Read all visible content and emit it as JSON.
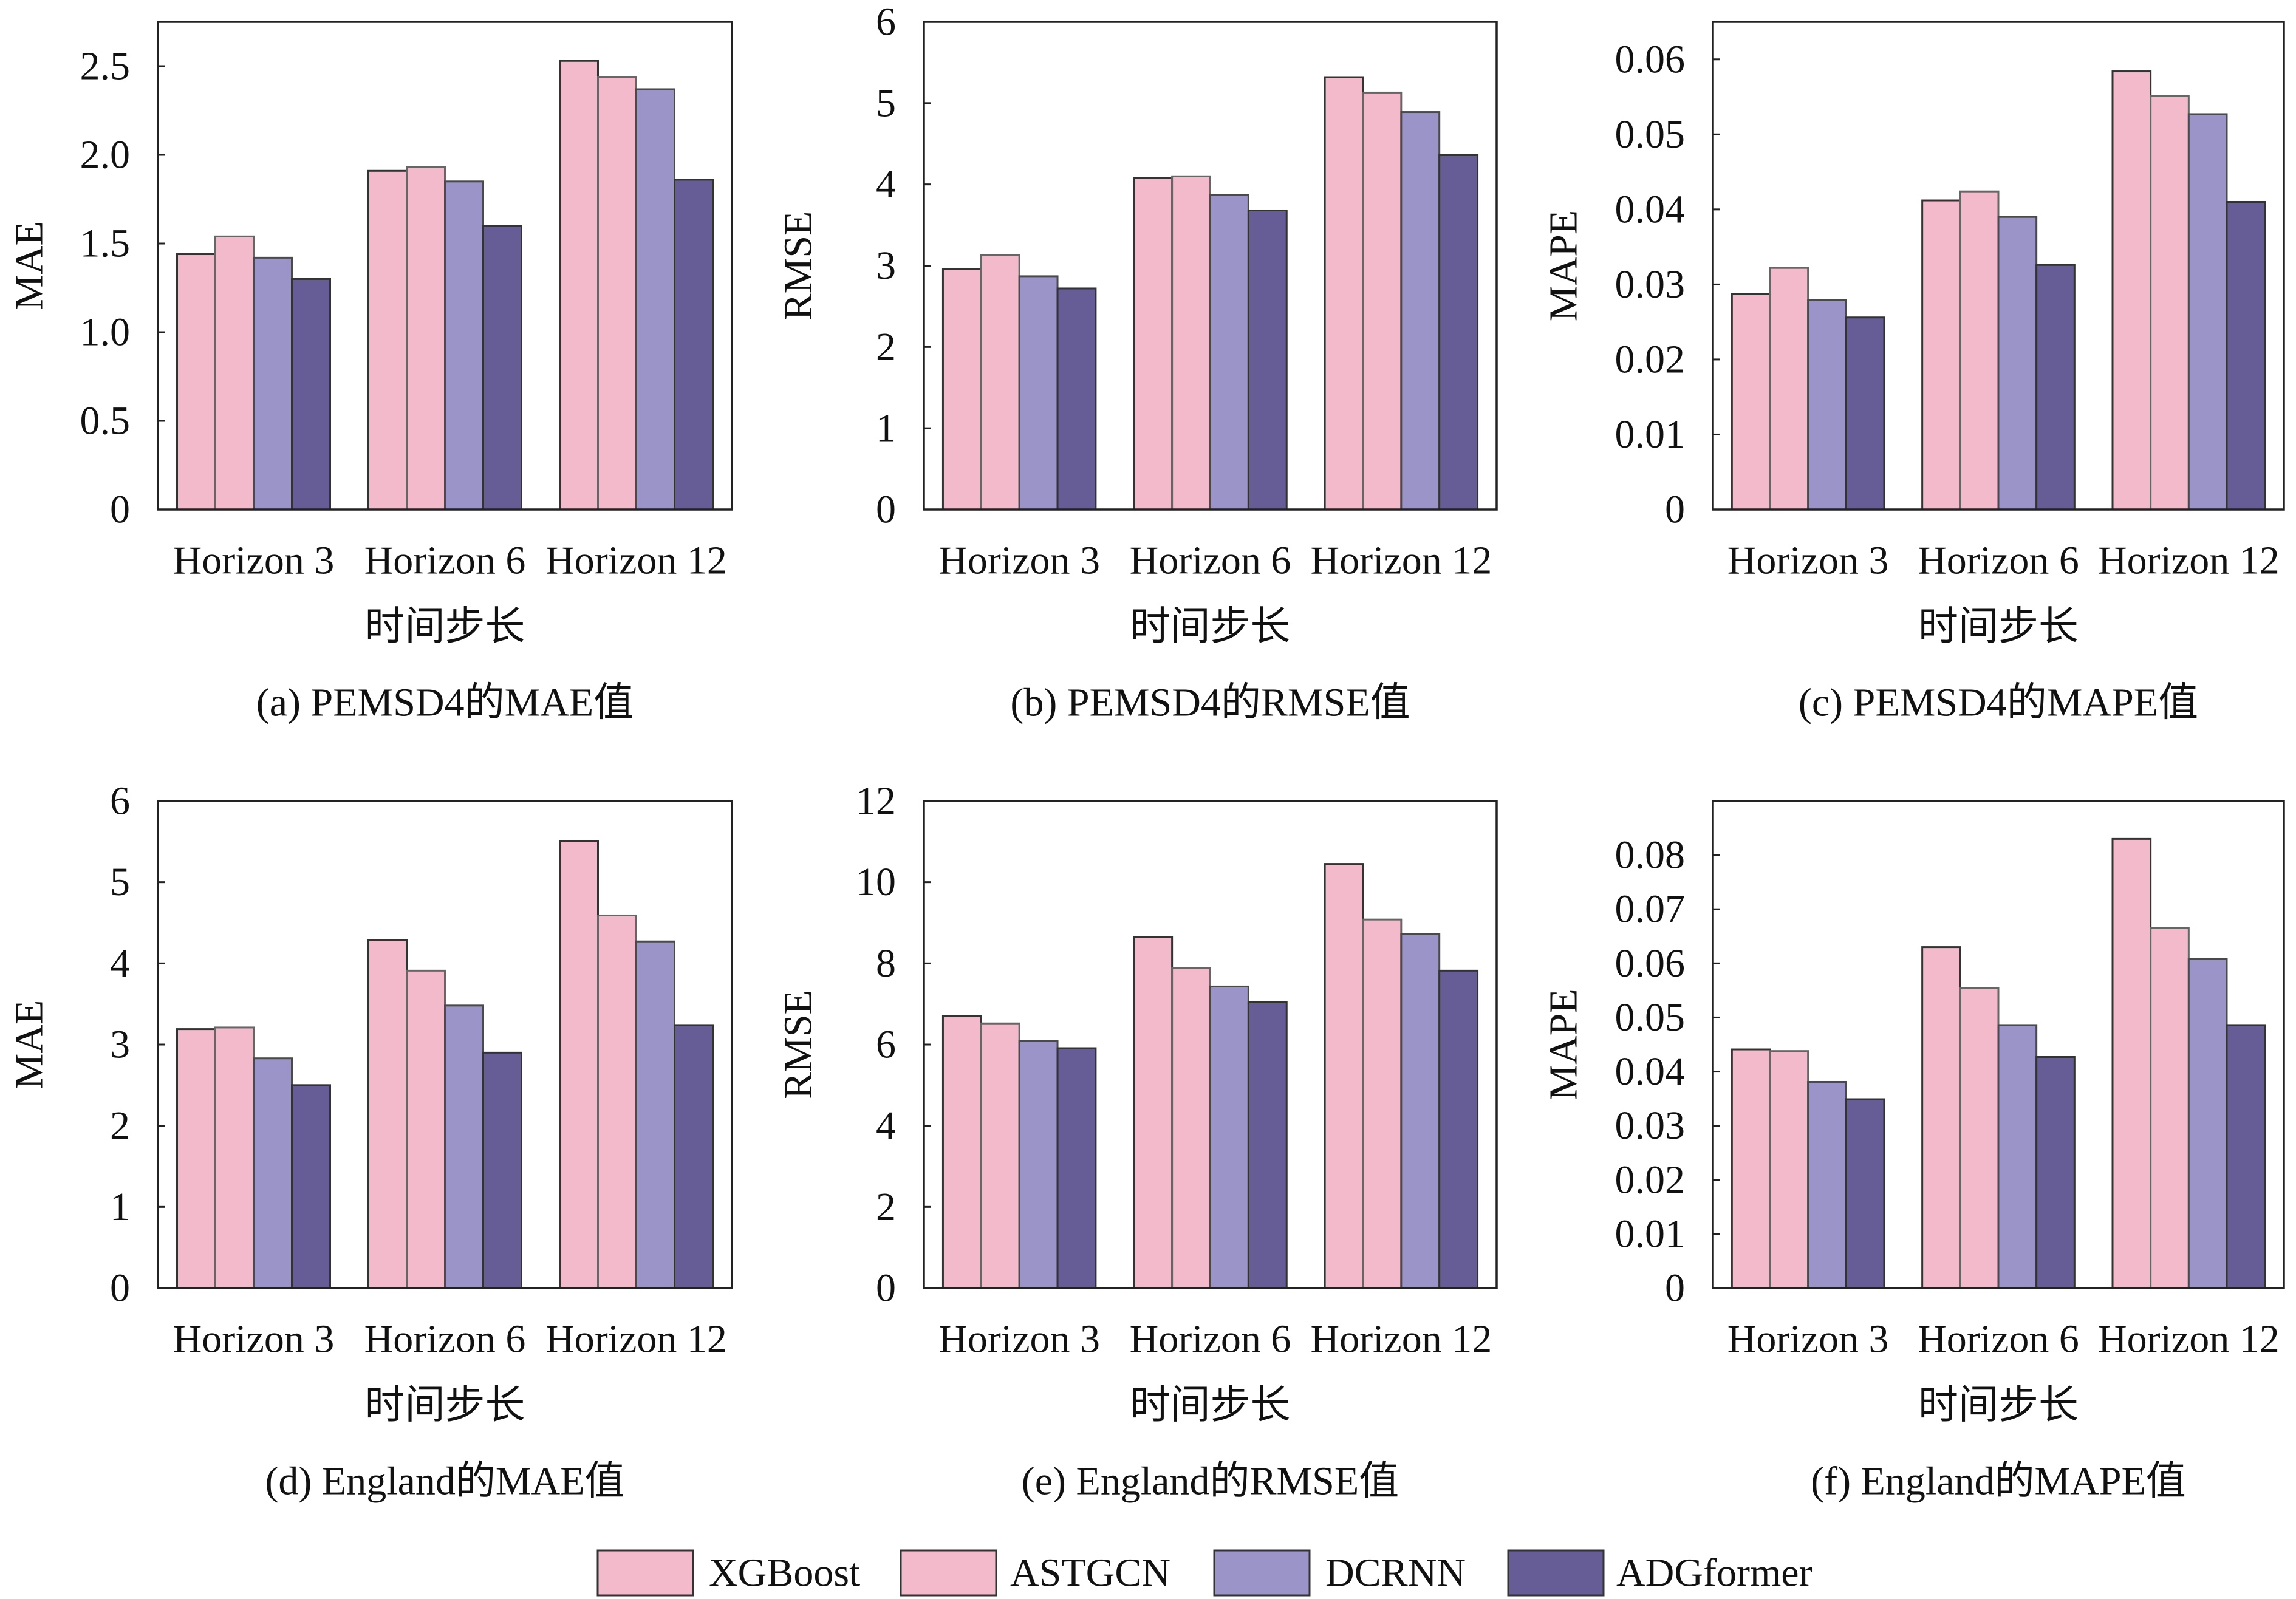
{
  "chart_data": [
    {
      "type": "bar",
      "caption": "(a) PEMSD4的MAE值",
      "xlabel": "时间步长",
      "ylabel": "MAE",
      "categories": [
        "Horizon 3",
        "Horizon 6",
        "Horizon 12"
      ],
      "ylim": [
        0,
        2.75
      ],
      "yticks": [
        0,
        0.5,
        1.0,
        1.5,
        2.0,
        2.5
      ],
      "ytick_labels": [
        "0",
        "0.5",
        "1.0",
        "1.5",
        "2.0",
        "2.5"
      ],
      "grid": false,
      "legend": "bottom",
      "series": [
        {
          "name": "XGBoost",
          "color": "#f3bacb",
          "values": [
            1.44,
            1.91,
            2.53
          ]
        },
        {
          "name": "ASTGCN",
          "color": "#f3bacb",
          "values": [
            1.54,
            1.93,
            2.44
          ]
        },
        {
          "name": "DCRNN",
          "color": "#9b94c9",
          "values": [
            1.42,
            1.85,
            2.37
          ]
        },
        {
          "name": "ADGformer",
          "color": "#665c96",
          "values": [
            1.3,
            1.6,
            1.86
          ]
        }
      ]
    },
    {
      "type": "bar",
      "caption": "(b) PEMSD4的RMSE值",
      "xlabel": "时间步长",
      "ylabel": "RMSE",
      "categories": [
        "Horizon 3",
        "Horizon 6",
        "Horizon 12"
      ],
      "ylim": [
        0,
        6
      ],
      "yticks": [
        0,
        1,
        2,
        3,
        4,
        5,
        6
      ],
      "ytick_labels": [
        "0",
        "1",
        "2",
        "3",
        "4",
        "5",
        "6"
      ],
      "grid": false,
      "legend": "bottom",
      "series": [
        {
          "name": "XGBoost",
          "color": "#f3bacb",
          "values": [
            2.96,
            4.08,
            5.32
          ]
        },
        {
          "name": "ASTGCN",
          "color": "#f3bacb",
          "values": [
            3.13,
            4.1,
            5.13
          ]
        },
        {
          "name": "DCRNN",
          "color": "#9b94c9",
          "values": [
            2.87,
            3.87,
            4.89
          ]
        },
        {
          "name": "ADGformer",
          "color": "#665c96",
          "values": [
            2.72,
            3.68,
            4.36
          ]
        }
      ]
    },
    {
      "type": "bar",
      "caption": "(c) PEMSD4的MAPE值",
      "xlabel": "时间步长",
      "ylabel": "MAPE",
      "categories": [
        "Horizon 3",
        "Horizon 6",
        "Horizon 12"
      ],
      "ylim": [
        0,
        0.065
      ],
      "yticks": [
        0,
        0.01,
        0.02,
        0.03,
        0.04,
        0.05,
        0.06
      ],
      "ytick_labels": [
        "0",
        "0.01",
        "0.02",
        "0.03",
        "0.04",
        "0.05",
        "0.06"
      ],
      "grid": false,
      "legend": "bottom",
      "series": [
        {
          "name": "XGBoost",
          "color": "#f3bacb",
          "values": [
            0.0287,
            0.0412,
            0.0584
          ]
        },
        {
          "name": "ASTGCN",
          "color": "#f3bacb",
          "values": [
            0.0322,
            0.0424,
            0.0551
          ]
        },
        {
          "name": "DCRNN",
          "color": "#9b94c9",
          "values": [
            0.0279,
            0.039,
            0.0527
          ]
        },
        {
          "name": "ADGformer",
          "color": "#665c96",
          "values": [
            0.0256,
            0.0326,
            0.041
          ]
        }
      ]
    },
    {
      "type": "bar",
      "caption": "(d) England的MAE值",
      "xlabel": "时间步长",
      "ylabel": "MAE",
      "categories": [
        "Horizon 3",
        "Horizon 6",
        "Horizon 12"
      ],
      "ylim": [
        0,
        6
      ],
      "yticks": [
        0,
        1,
        2,
        3,
        4,
        5,
        6
      ],
      "ytick_labels": [
        "0",
        "1",
        "2",
        "3",
        "4",
        "5",
        "6"
      ],
      "grid": false,
      "legend": "bottom",
      "series": [
        {
          "name": "XGBoost",
          "color": "#f3bacb",
          "values": [
            3.19,
            4.29,
            5.51
          ]
        },
        {
          "name": "ASTGCN",
          "color": "#f3bacb",
          "values": [
            3.21,
            3.91,
            4.59
          ]
        },
        {
          "name": "DCRNN",
          "color": "#9b94c9",
          "values": [
            2.83,
            3.48,
            4.27
          ]
        },
        {
          "name": "ADGformer",
          "color": "#665c96",
          "values": [
            2.5,
            2.9,
            3.24
          ]
        }
      ]
    },
    {
      "type": "bar",
      "caption": "(e) England的RMSE值",
      "xlabel": "时间步长",
      "ylabel": "RMSE",
      "categories": [
        "Horizon 3",
        "Horizon 6",
        "Horizon 12"
      ],
      "ylim": [
        0,
        12
      ],
      "yticks": [
        0,
        2,
        4,
        6,
        8,
        10,
        12
      ],
      "ytick_labels": [
        "0",
        "2",
        "4",
        "6",
        "8",
        "10",
        "12"
      ],
      "grid": false,
      "legend": "bottom",
      "series": [
        {
          "name": "XGBoost",
          "color": "#f3bacb",
          "values": [
            6.7,
            8.65,
            10.45
          ]
        },
        {
          "name": "ASTGCN",
          "color": "#f3bacb",
          "values": [
            6.52,
            7.89,
            9.08
          ]
        },
        {
          "name": "DCRNN",
          "color": "#9b94c9",
          "values": [
            6.09,
            7.43,
            8.72
          ]
        },
        {
          "name": "ADGformer",
          "color": "#665c96",
          "values": [
            5.91,
            7.04,
            7.82
          ]
        }
      ]
    },
    {
      "type": "bar",
      "caption": "(f) England的MAPE值",
      "xlabel": "时间步长",
      "ylabel": "MAPE",
      "categories": [
        "Horizon 3",
        "Horizon 6",
        "Horizon 12"
      ],
      "ylim": [
        0,
        0.09
      ],
      "yticks": [
        0,
        0.01,
        0.02,
        0.03,
        0.04,
        0.05,
        0.06,
        0.07,
        0.08
      ],
      "ytick_labels": [
        "0",
        "0.01",
        "0.02",
        "0.03",
        "0.04",
        "0.05",
        "0.06",
        "0.07",
        "0.08"
      ],
      "grid": false,
      "legend": "bottom",
      "series": [
        {
          "name": "XGBoost",
          "color": "#f3bacb",
          "values": [
            0.0441,
            0.063,
            0.083
          ]
        },
        {
          "name": "ASTGCN",
          "color": "#f3bacb",
          "values": [
            0.0438,
            0.0554,
            0.0665
          ]
        },
        {
          "name": "DCRNN",
          "color": "#9b94c9",
          "values": [
            0.0381,
            0.0486,
            0.0608
          ]
        },
        {
          "name": "ADGformer",
          "color": "#665c96",
          "values": [
            0.0349,
            0.0427,
            0.0486
          ]
        }
      ]
    }
  ]
}
